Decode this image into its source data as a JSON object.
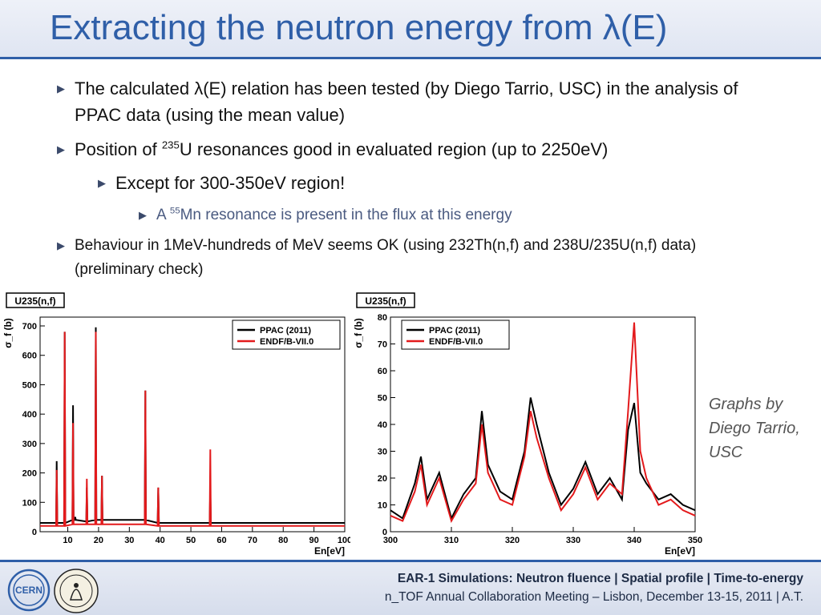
{
  "slide": {
    "title": "Extracting the neutron energy from λ(E)",
    "bullets": {
      "b1": "The calculated λ(E) relation has been tested (by Diego Tarrio, USC) in the analysis of PPAC data (using the mean value)",
      "b2_pre": "Position of ",
      "b2_sup": "235",
      "b2_post": "U resonances good in evaluated region (up to 2250eV)",
      "b3": "Except for 300-350eV region!",
      "b4_pre": "A ",
      "b4_sup": "55",
      "b4_post": "Mn resonance is present in the flux at this energy",
      "b5": "Behaviour in 1MeV-hundreds of MeV seems OK (using 232Th(n,f) and 238U/235U(n,f) data) (preliminary check)"
    },
    "credit": "Graphs by Diego Tarrio, USC",
    "footer_line1": "EAR-1 Simulations: Neutron fluence | Spatial profile | Time-to-energy",
    "footer_line2": "n_TOF Annual Collaboration Meeting – Lisbon, December 13-15, 2011 | A.T."
  },
  "colors": {
    "title": "#2f5fa8",
    "ppac": "#000000",
    "endf": "#e31a1c"
  },
  "chart_data": [
    {
      "type": "line",
      "label": "U235(n,f)",
      "ylabel": "σ_f (b)",
      "xlabel": "En[eV]",
      "xlim": [
        1,
        100
      ],
      "ylim": [
        0,
        730
      ],
      "xticks": [
        10,
        20,
        30,
        40,
        50,
        60,
        70,
        80,
        90,
        100
      ],
      "yticks": [
        0,
        100,
        200,
        300,
        400,
        500,
        600,
        700
      ],
      "legend": [
        "PPAC (2011)",
        "ENDF/B-VII.0"
      ],
      "legend_position": "top-right",
      "series": [
        {
          "name": "PPAC (2011)",
          "x": [
            1,
            6.2,
            6.4,
            6.6,
            8.8,
            9,
            9.2,
            11.5,
            11.7,
            11.9,
            12.2,
            12.4,
            12.6,
            16,
            16.2,
            16.4,
            18.9,
            19.1,
            19.3,
            20.9,
            21.1,
            21.3,
            35.0,
            35.2,
            35.4,
            39.2,
            39.4,
            39.6,
            56.1,
            56.3,
            56.5,
            100
          ],
          "y": [
            30,
            30,
            240,
            30,
            30,
            680,
            30,
            40,
            430,
            40,
            40,
            50,
            40,
            35,
            150,
            35,
            40,
            695,
            40,
            40,
            190,
            40,
            40,
            480,
            40,
            30,
            150,
            30,
            30,
            150,
            30,
            30
          ]
        },
        {
          "name": "ENDF/B-VII.0",
          "x": [
            1,
            6.2,
            6.4,
            6.6,
            8.8,
            9,
            9.2,
            11.5,
            11.7,
            11.9,
            16,
            16.2,
            16.4,
            18.9,
            19.1,
            19.3,
            20.9,
            21.1,
            21.3,
            35.0,
            35.2,
            35.4,
            39.2,
            39.4,
            39.6,
            56.1,
            56.3,
            56.5,
            100
          ],
          "y": [
            20,
            20,
            210,
            20,
            20,
            680,
            20,
            25,
            370,
            25,
            25,
            180,
            25,
            25,
            680,
            25,
            25,
            190,
            25,
            25,
            480,
            25,
            20,
            150,
            20,
            20,
            280,
            20,
            20
          ]
        }
      ]
    },
    {
      "type": "line",
      "label": "U235(n,f)",
      "ylabel": "σ_f (b)",
      "xlabel": "En[eV]",
      "xlim": [
        300,
        350
      ],
      "ylim": [
        0,
        80
      ],
      "xticks": [
        300,
        310,
        320,
        330,
        340,
        350
      ],
      "yticks": [
        0,
        10,
        20,
        30,
        40,
        50,
        60,
        70,
        80
      ],
      "legend": [
        "PPAC (2011)",
        "ENDF/B-VII.0"
      ],
      "legend_position": "top-left",
      "series": [
        {
          "name": "PPAC (2011)",
          "x": [
            300,
            302,
            304,
            305,
            306,
            308,
            310,
            312,
            314,
            315,
            316,
            318,
            320,
            322,
            323,
            324,
            326,
            328,
            330,
            332,
            334,
            336,
            338,
            339,
            340,
            341,
            342,
            344,
            346,
            348,
            350
          ],
          "y": [
            8,
            5,
            18,
            28,
            12,
            22,
            5,
            14,
            20,
            45,
            25,
            15,
            12,
            30,
            50,
            40,
            22,
            10,
            16,
            26,
            14,
            20,
            12,
            38,
            48,
            22,
            18,
            12,
            14,
            10,
            8
          ]
        },
        {
          "name": "ENDF/B-VII.0",
          "x": [
            300,
            302,
            304,
            305,
            306,
            308,
            310,
            312,
            314,
            315,
            316,
            318,
            320,
            322,
            323,
            324,
            326,
            328,
            330,
            332,
            334,
            336,
            338,
            339,
            340,
            341,
            342,
            344,
            346,
            348,
            350
          ],
          "y": [
            6,
            4,
            15,
            25,
            10,
            20,
            4,
            12,
            18,
            40,
            22,
            12,
            10,
            28,
            45,
            35,
            20,
            8,
            14,
            24,
            12,
            18,
            14,
            45,
            78,
            30,
            20,
            10,
            12,
            8,
            6
          ]
        }
      ]
    }
  ]
}
